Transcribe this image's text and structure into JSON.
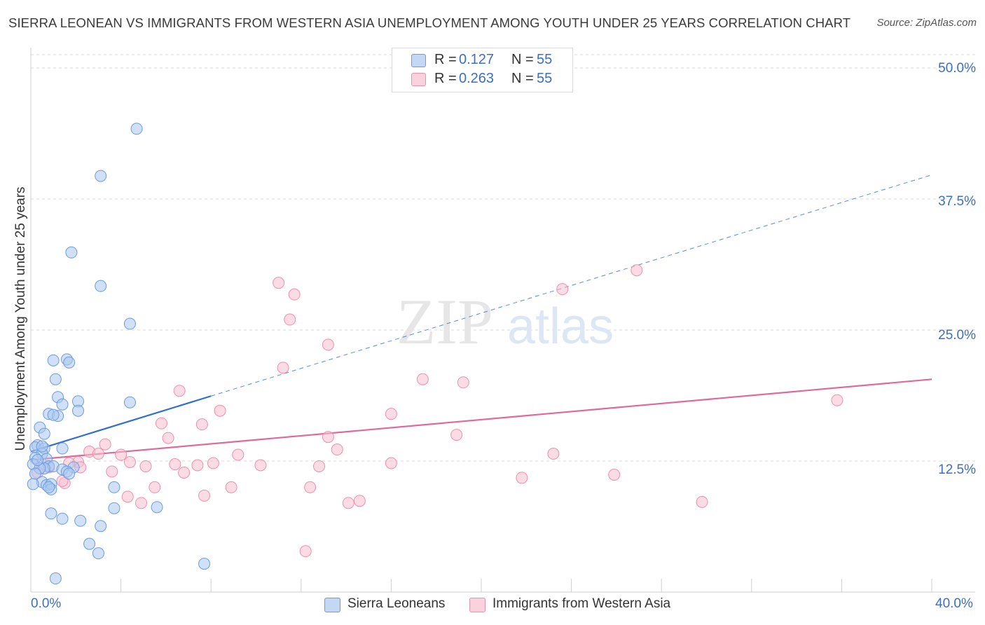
{
  "title": "SIERRA LEONEAN VS IMMIGRANTS FROM WESTERN ASIA UNEMPLOYMENT AMONG YOUTH UNDER 25 YEARS CORRELATION CHART",
  "source": "Source: ZipAtlas.com",
  "watermark": {
    "zip": "ZIP",
    "atlas": "atlas"
  },
  "colors": {
    "blue_fill": "#a9c8f0",
    "blue_stroke": "#6b9be0",
    "blue_line": "#2f6fcd",
    "pink_fill": "#f7bfd0",
    "pink_stroke": "#ec8fad",
    "pink_line": "#e0699a",
    "axis_label": "#3b6fc4",
    "grid": "#d9d9d9"
  },
  "legend_top": {
    "rows": [
      {
        "r_label": "R =",
        "r_value": "0.127",
        "n_label": "N =",
        "n_value": "55",
        "series": "blue"
      },
      {
        "r_label": "R =",
        "r_value": "0.263",
        "n_label": "N =",
        "n_value": "55",
        "series": "pink"
      }
    ]
  },
  "legend_bottom": [
    {
      "label": "Sierra Leoneans",
      "series": "blue"
    },
    {
      "label": "Immigrants from Western Asia",
      "series": "pink"
    }
  ],
  "chart_data": {
    "type": "scatter",
    "title": "SIERRA LEONEAN VS IMMIGRANTS FROM WESTERN ASIA UNEMPLOYMENT AMONG YOUTH UNDER 25 YEARS CORRELATION CHART",
    "xlabel": "",
    "ylabel": "Unemployment Among Youth under 25 years",
    "xlim": [
      0,
      40
    ],
    "ylim": [
      0,
      50
    ],
    "x_tick_labels": [
      "0.0%",
      "40.0%"
    ],
    "y_ticks": [
      12.5,
      25.0,
      37.5,
      50.0
    ],
    "y_tick_labels": [
      "12.5%",
      "25.0%",
      "37.5%",
      "50.0%"
    ],
    "grid": true,
    "series": [
      {
        "name": "Sierra Leoneans",
        "color": "blue",
        "trend": {
          "x": [
            0,
            8
          ],
          "y": [
            13.4,
            18.7
          ],
          "extended_to": [
            40,
            39.8
          ]
        },
        "points": [
          [
            4.7,
            44.2
          ],
          [
            3.1,
            39.7
          ],
          [
            1.8,
            32.4
          ],
          [
            3.1,
            29.2
          ],
          [
            4.4,
            25.6
          ],
          [
            1.0,
            22.1
          ],
          [
            1.6,
            22.2
          ],
          [
            1.7,
            21.9
          ],
          [
            1.1,
            20.3
          ],
          [
            1.2,
            18.6
          ],
          [
            2.1,
            18.2
          ],
          [
            4.4,
            18.1
          ],
          [
            1.4,
            17.9
          ],
          [
            0.8,
            17.0
          ],
          [
            1.2,
            16.8
          ],
          [
            1.0,
            16.9
          ],
          [
            2.1,
            17.3
          ],
          [
            0.4,
            15.7
          ],
          [
            0.6,
            15.1
          ],
          [
            0.3,
            14.0
          ],
          [
            0.2,
            13.8
          ],
          [
            0.6,
            13.7
          ],
          [
            1.4,
            13.7
          ],
          [
            0.5,
            13.2
          ],
          [
            0.7,
            12.7
          ],
          [
            0.2,
            12.8
          ],
          [
            0.1,
            12.2
          ],
          [
            0.8,
            12.0
          ],
          [
            1.0,
            12.0
          ],
          [
            0.6,
            11.8
          ],
          [
            0.4,
            11.8
          ],
          [
            1.4,
            11.7
          ],
          [
            1.9,
            11.9
          ],
          [
            1.6,
            11.5
          ],
          [
            1.7,
            11.3
          ],
          [
            0.2,
            11.3
          ],
          [
            0.5,
            10.5
          ],
          [
            0.7,
            10.2
          ],
          [
            0.9,
            10.3
          ],
          [
            0.9,
            9.8
          ],
          [
            0.1,
            10.3
          ],
          [
            3.7,
            10.0
          ],
          [
            5.6,
            8.1
          ],
          [
            3.7,
            8.0
          ],
          [
            0.9,
            7.5
          ],
          [
            1.4,
            7.0
          ],
          [
            2.2,
            6.8
          ],
          [
            3.1,
            6.3
          ],
          [
            2.6,
            4.6
          ],
          [
            3.0,
            3.7
          ],
          [
            7.7,
            2.7
          ],
          [
            1.1,
            1.3
          ],
          [
            0.3,
            12.6
          ],
          [
            0.5,
            13.9
          ],
          [
            0.8,
            10.0
          ]
        ]
      },
      {
        "name": "Immigrants from Western Asia",
        "color": "pink",
        "trend": {
          "x": [
            0,
            40
          ],
          "y": [
            12.6,
            20.3
          ]
        },
        "points": [
          [
            11.0,
            29.5
          ],
          [
            26.9,
            30.7
          ],
          [
            11.7,
            28.4
          ],
          [
            23.6,
            28.9
          ],
          [
            11.5,
            26.0
          ],
          [
            13.2,
            23.6
          ],
          [
            11.2,
            21.4
          ],
          [
            17.4,
            20.3
          ],
          [
            19.2,
            20.0
          ],
          [
            6.6,
            19.2
          ],
          [
            35.8,
            18.3
          ],
          [
            16.0,
            17.0
          ],
          [
            8.4,
            17.3
          ],
          [
            5.8,
            16.1
          ],
          [
            7.6,
            16.0
          ],
          [
            13.2,
            14.8
          ],
          [
            18.9,
            15.0
          ],
          [
            6.1,
            14.7
          ],
          [
            3.3,
            14.1
          ],
          [
            13.6,
            13.6
          ],
          [
            2.6,
            13.4
          ],
          [
            23.2,
            13.2
          ],
          [
            3.0,
            13.2
          ],
          [
            9.2,
            13.1
          ],
          [
            4.0,
            13.1
          ],
          [
            2.1,
            12.4
          ],
          [
            1.7,
            12.3
          ],
          [
            0.5,
            12.2
          ],
          [
            4.4,
            12.4
          ],
          [
            8.1,
            12.3
          ],
          [
            6.4,
            12.2
          ],
          [
            7.4,
            12.1
          ],
          [
            10.2,
            12.1
          ],
          [
            16.0,
            12.3
          ],
          [
            12.8,
            12.0
          ],
          [
            5.1,
            12.0
          ],
          [
            0.8,
            11.9
          ],
          [
            2.2,
            11.9
          ],
          [
            3.6,
            11.5
          ],
          [
            6.8,
            11.4
          ],
          [
            0.3,
            11.4
          ],
          [
            21.8,
            10.9
          ],
          [
            25.9,
            11.2
          ],
          [
            1.5,
            10.4
          ],
          [
            5.5,
            10.0
          ],
          [
            8.9,
            10.0
          ],
          [
            12.4,
            10.0
          ],
          [
            7.7,
            9.2
          ],
          [
            4.3,
            9.1
          ],
          [
            4.9,
            8.5
          ],
          [
            14.1,
            8.5
          ],
          [
            14.6,
            8.7
          ],
          [
            29.8,
            8.6
          ],
          [
            12.2,
            3.9
          ],
          [
            1.4,
            10.6
          ]
        ]
      }
    ]
  }
}
